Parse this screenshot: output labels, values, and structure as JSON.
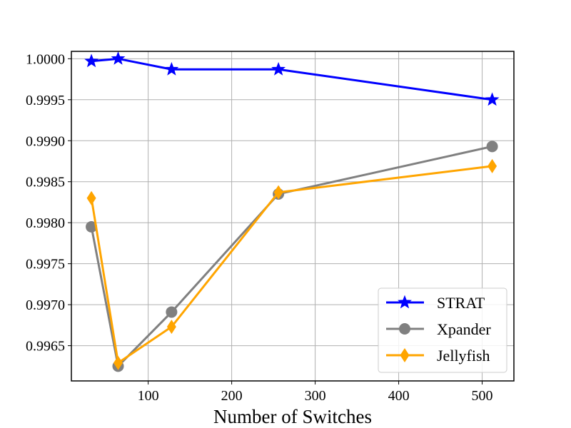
{
  "chart_data": {
    "type": "line",
    "title": "",
    "xlabel": "Number of Switches",
    "ylabel": "",
    "xlim": [
      8,
      538
    ],
    "ylim": [
      0.99607,
      1.00009
    ],
    "xticks": [
      100,
      200,
      300,
      400,
      500
    ],
    "yticks": [
      0.9965,
      0.997,
      0.9975,
      0.998,
      0.9985,
      0.999,
      0.9995,
      1.0
    ],
    "xtick_labels": [
      "100",
      "200",
      "300",
      "400",
      "500"
    ],
    "ytick_labels": [
      "0.9965",
      "0.9970",
      "0.9975",
      "0.9980",
      "0.9985",
      "0.9990",
      "0.9995",
      "1.0000"
    ],
    "grid": true,
    "legend_position": "lower-right",
    "series": [
      {
        "name": "STRAT",
        "color": "#0000ff",
        "marker": "star",
        "x": [
          32,
          64,
          128,
          256,
          512
        ],
        "y": [
          0.99997,
          1.0,
          0.99987,
          0.99987,
          0.9995
        ]
      },
      {
        "name": "Xpander",
        "color": "#808080",
        "marker": "circle",
        "x": [
          32,
          64,
          128,
          256,
          512
        ],
        "y": [
          0.99795,
          0.99625,
          0.99691,
          0.99835,
          0.99893
        ]
      },
      {
        "name": "Jellyfish",
        "color": "#ffa500",
        "marker": "diamond",
        "x": [
          32,
          64,
          128,
          256,
          512
        ],
        "y": [
          0.9983,
          0.99629,
          0.99673,
          0.99837,
          0.99869
        ]
      }
    ]
  }
}
